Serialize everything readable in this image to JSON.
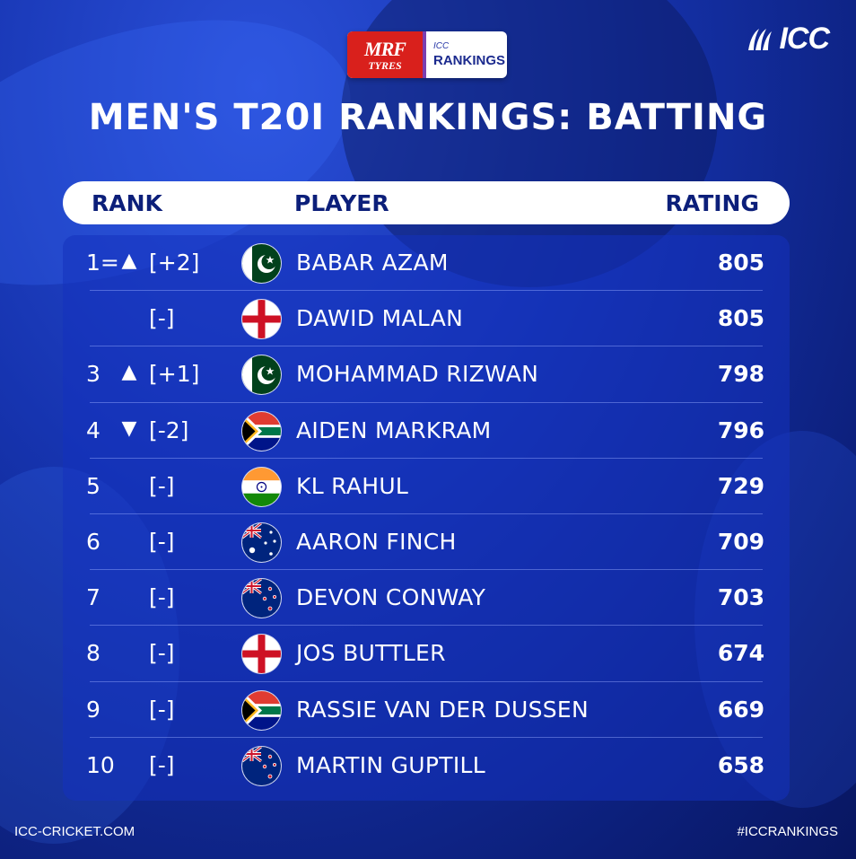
{
  "sponsor": {
    "mrf_line1": "MRF",
    "mrf_line2": "TYRES",
    "icc_small": "ICC",
    "rankings": "RANKINGS"
  },
  "brand": {
    "logo_text": "ICC"
  },
  "title": "MEN'S T20I RANKINGS: BATTING",
  "header": {
    "rank": "RANK",
    "player": "PLAYER",
    "rating": "RATING"
  },
  "rows": [
    {
      "rank": "1=",
      "arrow": "▲",
      "move": "[+2]",
      "flag": "pakistan-flag-icon",
      "player": "BABAR AZAM",
      "rating": "805"
    },
    {
      "rank": "",
      "arrow": "",
      "move": "[-]",
      "flag": "england-flag-icon",
      "player": "DAWID MALAN",
      "rating": "805"
    },
    {
      "rank": "3",
      "arrow": "▲",
      "move": "[+1]",
      "flag": "pakistan-flag-icon",
      "player": "MOHAMMAD RIZWAN",
      "rating": "798"
    },
    {
      "rank": "4",
      "arrow": "▼",
      "move": "[-2]",
      "flag": "south-africa-flag-icon",
      "player": "AIDEN MARKRAM",
      "rating": "796"
    },
    {
      "rank": "5",
      "arrow": "",
      "move": "[-]",
      "flag": "india-flag-icon",
      "player": "KL RAHUL",
      "rating": "729"
    },
    {
      "rank": "6",
      "arrow": "",
      "move": "[-]",
      "flag": "australia-flag-icon",
      "player": "AARON FINCH",
      "rating": "709"
    },
    {
      "rank": "7",
      "arrow": "",
      "move": "[-]",
      "flag": "new-zealand-flag-icon",
      "player": "DEVON CONWAY",
      "rating": "703"
    },
    {
      "rank": "8",
      "arrow": "",
      "move": "[-]",
      "flag": "england-flag-icon",
      "player": "JOS BUTTLER",
      "rating": "674"
    },
    {
      "rank": "9",
      "arrow": "",
      "move": "[-]",
      "flag": "south-africa-flag-icon",
      "player": "RASSIE VAN DER DUSSEN",
      "rating": "669"
    },
    {
      "rank": "10",
      "arrow": "",
      "move": "[-]",
      "flag": "new-zealand-flag-icon",
      "player": "MARTIN GUPTILL",
      "rating": "658"
    }
  ],
  "footer": {
    "left": "ICC-CRICKET.COM",
    "right": "#ICCRANKINGS"
  },
  "colors": {
    "background": "#1634b0",
    "header_text": "#0c1f7a",
    "mrf_red": "#d9201c"
  }
}
